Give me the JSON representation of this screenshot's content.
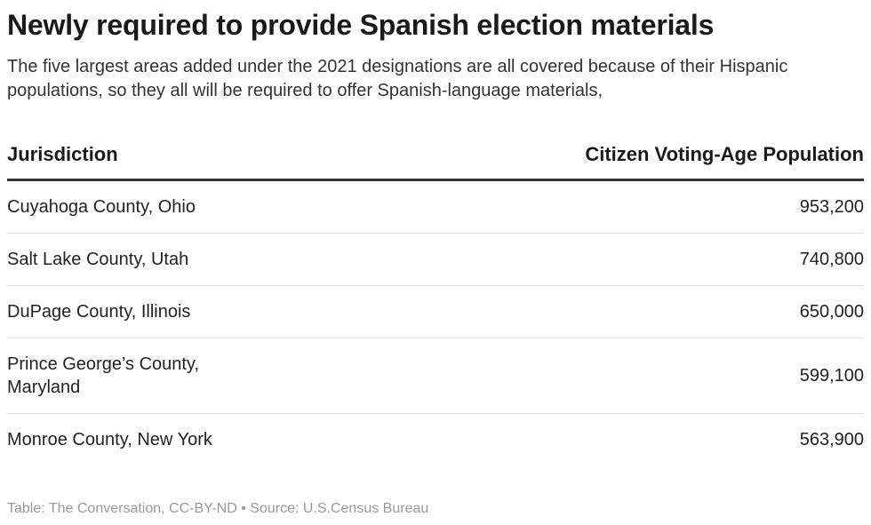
{
  "chart_data": {
    "type": "table",
    "title": "Newly required to provide Spanish election materials",
    "subtitle": "The five largest areas added under the 2021 designations are all covered because of their Hispanic populations, so they all will be required to offer Spanish-language materials,",
    "columns": [
      "Jurisdiction",
      "Citizen Voting-Age Population"
    ],
    "rows": [
      {
        "jurisdiction": "Cuyahoga County, Ohio",
        "population": "953,200"
      },
      {
        "jurisdiction": "Salt Lake County, Utah",
        "population": "740,800"
      },
      {
        "jurisdiction": "DuPage County, Illinois",
        "population": "650,000"
      },
      {
        "jurisdiction": "Prince George’s County, Maryland",
        "population": "599,100"
      },
      {
        "jurisdiction": "Monroe County, New York",
        "population": "563,900"
      }
    ],
    "values": [
      953200,
      740800,
      650000,
      599100,
      563900
    ]
  },
  "footer": "Table: The Conversation, CC-BY-ND • Source: U.S.Census Bureau"
}
